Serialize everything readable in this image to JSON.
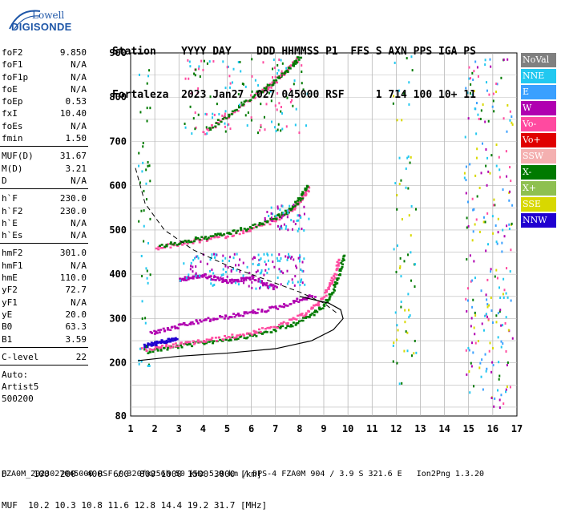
{
  "logo": {
    "line1": "Lowell",
    "line2": "DIGISONDE"
  },
  "header": {
    "row1": "Station    YYYY DAY    DDD HHMMSS P1  FFS S AXN PPS IGA PS",
    "row2": "Fortaleza  2023 Jan27  027 045000 RSF     1 714 100 10+ 11"
  },
  "params": {
    "group1": [
      {
        "k": "foF2",
        "v": "9.850"
      },
      {
        "k": "foF1",
        "v": "N/A"
      },
      {
        "k": "foF1p",
        "v": "N/A"
      },
      {
        "k": "foE",
        "v": "N/A"
      },
      {
        "k": "foEp",
        "v": "0.53"
      },
      {
        "k": "fxI",
        "v": "10.40"
      },
      {
        "k": "foEs",
        "v": "N/A"
      },
      {
        "k": "fmin",
        "v": "1.50"
      }
    ],
    "group2": [
      {
        "k": "MUF(D)",
        "v": "31.67"
      },
      {
        "k": "M(D)",
        "v": "3.21"
      },
      {
        "k": "D",
        "v": "N/A"
      }
    ],
    "group3": [
      {
        "k": "h`F",
        "v": "230.0"
      },
      {
        "k": "h`F2",
        "v": "230.0"
      },
      {
        "k": "h`E",
        "v": "N/A"
      },
      {
        "k": "h`Es",
        "v": "N/A"
      }
    ],
    "group4": [
      {
        "k": "hmF2",
        "v": "301.0"
      },
      {
        "k": "hmF1",
        "v": "N/A"
      },
      {
        "k": "hmE",
        "v": "110.0"
      },
      {
        "k": "yF2",
        "v": "72.7"
      },
      {
        "k": "yF1",
        "v": "N/A"
      },
      {
        "k": "yE",
        "v": "20.0"
      },
      {
        "k": "B0",
        "v": "63.3"
      },
      {
        "k": "B1",
        "v": "3.59"
      }
    ],
    "clevel": {
      "k": "C-level",
      "v": "22"
    },
    "auto": [
      "Auto:",
      "Artist5",
      "500200"
    ]
  },
  "legend": [
    {
      "label": "NoVal",
      "color": "#808080"
    },
    {
      "label": "NNE",
      "color": "#22c8f0"
    },
    {
      "label": "E",
      "color": "#3aa0ff"
    },
    {
      "label": "W",
      "color": "#b000b0"
    },
    {
      "label": "Vo-",
      "color": "#ff4aa0"
    },
    {
      "label": "Vo+",
      "color": "#e00000"
    },
    {
      "label": "SSW",
      "color": "#f4b0b0"
    },
    {
      "label": "X-",
      "color": "#007a00"
    },
    {
      "label": "X+",
      "color": "#8ec050"
    },
    {
      "label": "SSE",
      "color": "#d8d800"
    },
    {
      "label": "NNW",
      "color": "#2000d0"
    }
  ],
  "bottom": {
    "row1": "D     100  200  400  600  800 1000 1500 3000 [km]",
    "row2": "MUF  10.2 10.3 10.8 11.6 12.8 14.4 19.2 31.7 [MHz]"
  },
  "footer": "FZA0M_2023027045000.RSF / 320fx256h 50 kHz 5.0 km / DPS-4 FZA0M 904 / 3.9 S 321.6 E   Ion2Png 1.3.20",
  "chart_data": {
    "type": "scatter",
    "xlabel": "",
    "ylabel": "",
    "xlim": [
      1,
      17
    ],
    "ylim": [
      80,
      900
    ],
    "xticks": [
      1,
      2,
      3,
      4,
      5,
      6,
      7,
      8,
      9,
      10,
      11,
      12,
      13,
      14,
      15,
      16,
      17
    ],
    "yticks": [
      80,
      200,
      300,
      400,
      500,
      600,
      700,
      800,
      900
    ],
    "grid": true,
    "legend_position": "right",
    "series": [
      {
        "name": "X-",
        "color": "#007a00",
        "x": [
          1.6,
          2.5,
          3.5,
          4.5,
          5.5,
          6.5,
          7.5,
          8.3,
          8.9,
          9.3,
          9.6,
          9.8
        ],
        "y": [
          228,
          236,
          244,
          252,
          260,
          270,
          285,
          305,
          330,
          360,
          400,
          450
        ]
      },
      {
        "name": "Vo-",
        "color": "#ff4aa0",
        "x": [
          1.4,
          2.3,
          3.3,
          4.3,
          5.3,
          6.3,
          7.3,
          8.1,
          8.7,
          9.1,
          9.4,
          9.6
        ],
        "y": [
          232,
          238,
          246,
          254,
          263,
          274,
          290,
          310,
          335,
          365,
          400,
          440
        ]
      },
      {
        "name": "NNW",
        "color": "#2000d0",
        "x": [
          1.5,
          1.8,
          2.1,
          2.5,
          2.9
        ],
        "y": [
          240,
          244,
          247,
          252,
          256
        ]
      },
      {
        "name": "W",
        "color": "#b000b0",
        "x": [
          1.8,
          2.5,
          3.2,
          4.0,
          4.8,
          5.6,
          6.4,
          7.2,
          8.0,
          8.6
        ],
        "y": [
          270,
          278,
          288,
          298,
          305,
          312,
          320,
          330,
          345,
          355
        ]
      },
      {
        "name": "W2",
        "color": "#b000b0",
        "x": [
          3.0,
          3.5,
          4.0,
          4.5,
          5.0,
          5.5,
          6.0,
          6.5,
          7.0
        ],
        "y": [
          390,
          395,
          400,
          392,
          385,
          390,
          395,
          380,
          370
        ]
      },
      {
        "name": "Vo- 2",
        "color": "#ff4aa0",
        "x": [
          2.0,
          3.0,
          4.0,
          5.0,
          6.0,
          7.0,
          7.6,
          8.0,
          8.4
        ],
        "y": [
          462,
          470,
          480,
          490,
          505,
          525,
          545,
          570,
          600
        ]
      },
      {
        "name": "X- 2",
        "color": "#007a00",
        "x": [
          2.2,
          3.2,
          4.2,
          5.2,
          6.2,
          7.0,
          7.6,
          8.0,
          8.3
        ],
        "y": [
          466,
          476,
          486,
          497,
          512,
          530,
          550,
          575,
          605
        ]
      },
      {
        "name": "Vo- 3",
        "color": "#ff4aa0",
        "x": [
          4.0,
          5.0,
          6.0,
          6.8,
          7.4,
          7.9
        ],
        "y": [
          720,
          760,
          800,
          830,
          860,
          890
        ]
      },
      {
        "name": "X- 3",
        "color": "#007a00",
        "x": [
          4.2,
          5.2,
          6.2,
          7.0,
          7.6,
          8.0
        ],
        "y": [
          730,
          770,
          810,
          840,
          870,
          895
        ]
      }
    ],
    "profile": {
      "x": [
        1.3,
        3,
        5,
        7,
        8.5,
        9.4,
        9.8,
        9.7,
        9.2,
        8.0
      ],
      "y": [
        205,
        215,
        222,
        232,
        250,
        275,
        300,
        320,
        335,
        350
      ]
    },
    "dashed": {
      "x": [
        1.2,
        1.6,
        2.4,
        3.6,
        5.0,
        6.5,
        8.0,
        9.0,
        9.6
      ],
      "y": [
        640,
        560,
        500,
        455,
        420,
        390,
        360,
        335,
        310
      ]
    }
  }
}
